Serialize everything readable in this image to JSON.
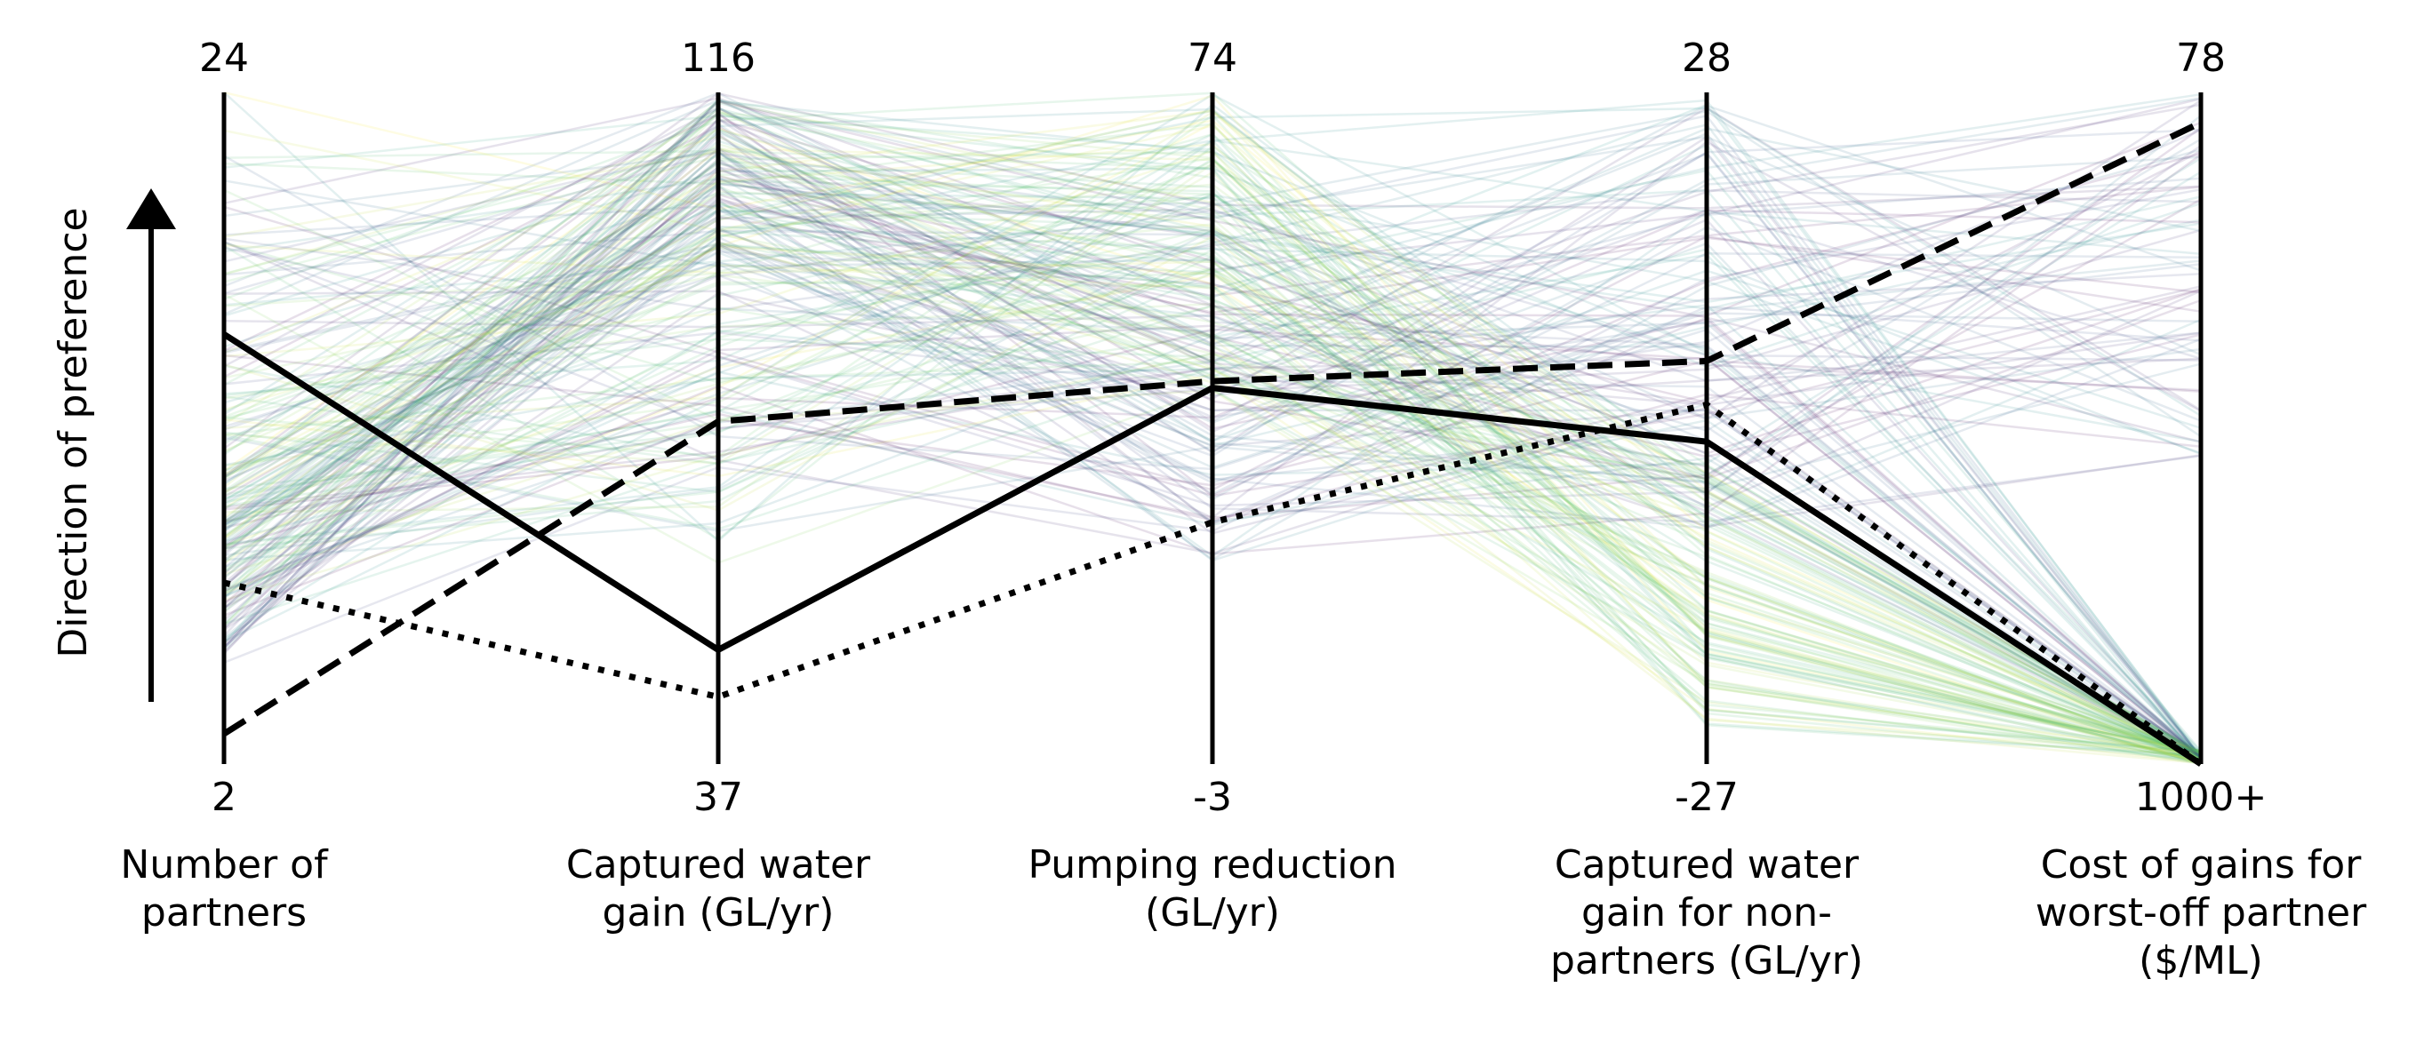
{
  "chart_data": {
    "type": "parallel-coordinates",
    "title": "",
    "preference_label": "Direction of preference",
    "axes": [
      {
        "name_lines": [
          "Number of",
          "partners"
        ],
        "top": "24",
        "bottom": "2",
        "min": 2,
        "max": 24
      },
      {
        "name_lines": [
          "Captured water",
          "gain (GL/yr)"
        ],
        "top": "116",
        "bottom": "37",
        "min": 37,
        "max": 116
      },
      {
        "name_lines": [
          "Pumping reduction",
          "(GL/yr)"
        ],
        "top": "74",
        "bottom": "-3",
        "min": -3,
        "max": 74
      },
      {
        "name_lines": [
          "Captured water",
          "gain for non-",
          "partners (GL/yr)"
        ],
        "top": "28",
        "bottom": "-27",
        "min": -27,
        "max": 28
      },
      {
        "name_lines": [
          "Cost of gains for",
          "worst-off partner",
          "($/ML)"
        ],
        "top": "78",
        "bottom": "1000+",
        "min": 78,
        "max": 1000
      }
    ],
    "highlighted": [
      {
        "style": "solid",
        "fractions": [
          0.64,
          0.17,
          0.56,
          0.48,
          0.0
        ]
      },
      {
        "style": "dashed",
        "fractions": [
          0.045,
          0.51,
          0.57,
          0.6,
          0.955
        ]
      },
      {
        "style": "dotted",
        "fractions": [
          0.27,
          0.1,
          0.36,
          0.535,
          0.0
        ]
      }
    ],
    "background_lines": {
      "count": 220,
      "colormap": "viridis",
      "opacity": 0.13
    }
  }
}
